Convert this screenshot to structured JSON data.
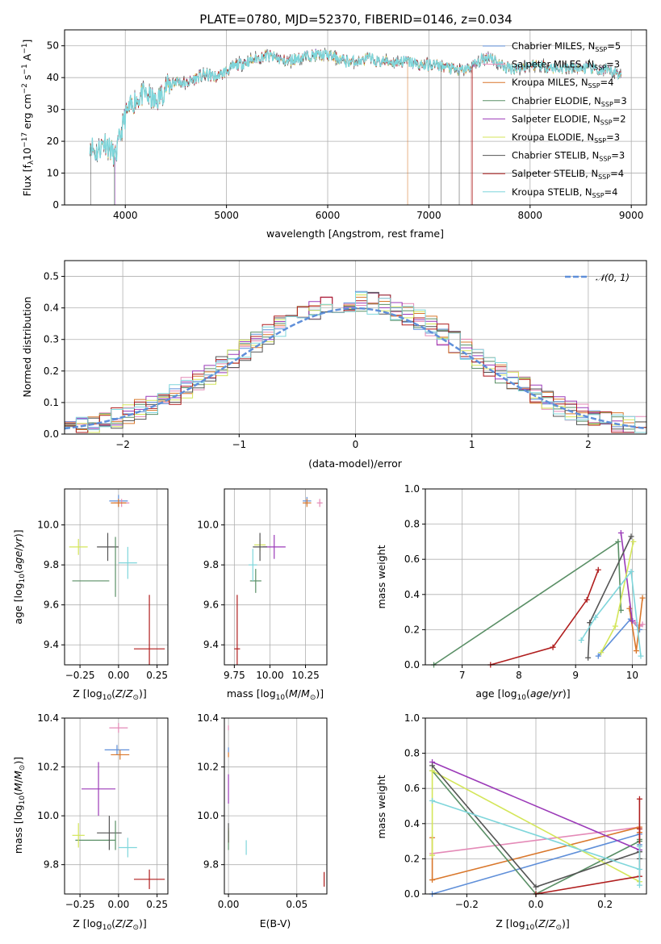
{
  "figure_title": "PLATE=0780, MJD=52370, FIBERID=0146, z=0.034",
  "models": [
    {
      "name": "Chabrier MILES, N$_{SSP}$=5",
      "label": "Chabrier MILES, N",
      "nssp": "=5",
      "color": "#5f8fd9"
    },
    {
      "name": "Salpeter MILES, N$_{SSP}$=3",
      "label": "Salpeter MILES, N",
      "nssp": "=3",
      "color": "#e48ab7"
    },
    {
      "name": "Kroupa MILES, N$_{SSP}$=4",
      "label": "Kroupa MILES, N",
      "nssp": "=4",
      "color": "#d9772b"
    },
    {
      "name": "Chabrier ELODIE, N$_{SSP}$=3",
      "label": "Chabrier ELODIE, N",
      "nssp": "=3",
      "color": "#5a8f66"
    },
    {
      "name": "Salpeter ELODIE, N$_{SSP}$=2",
      "label": "Salpeter ELODIE, N",
      "nssp": "=2",
      "color": "#9b3ab8"
    },
    {
      "name": "Kroupa ELODIE, N$_{SSP}$=3",
      "label": "Kroupa ELODIE, N",
      "nssp": "=3",
      "color": "#d4e65a"
    },
    {
      "name": "Chabrier STELIB, N$_{SSP}$=3",
      "label": "Chabrier STELIB, N",
      "nssp": "=3",
      "color": "#555555"
    },
    {
      "name": "Salpeter STELIB, N$_{SSP}$=4",
      "label": "Salpeter STELIB, N",
      "nssp": "=4",
      "color": "#b01e1e"
    },
    {
      "name": "Kroupa STELIB, N$_{SSP}$=4",
      "label": "Kroupa STELIB, N",
      "nssp": "=4",
      "color": "#7fd6db"
    }
  ],
  "chart_data": [
    {
      "id": "spectrum",
      "type": "line",
      "title": "PLATE=0780, MJD=52370, FIBERID=0146, z=0.034",
      "xlabel": "wavelength [Angstrom, rest frame]",
      "ylabel": "Flux [f_λ 10^-17 erg cm^-2 s^-1 A^-1]",
      "xlim": [
        3400,
        9150
      ],
      "ylim": [
        0,
        55
      ],
      "xticks": [
        4000,
        5000,
        6000,
        7000,
        8000,
        9000
      ],
      "yticks": [
        0,
        10,
        20,
        30,
        40,
        50
      ],
      "legend": "upper-right",
      "envelope": {
        "x": [
          3650,
          3700,
          3800,
          3900,
          4000,
          4100,
          4200,
          4300,
          4400,
          4500,
          4600,
          4700,
          4800,
          4900,
          5000,
          5100,
          5200,
          5300,
          5400,
          5500,
          5600,
          5700,
          5800,
          5900,
          6000,
          6100,
          6200,
          6300,
          6400,
          6500,
          6600,
          6700,
          6800,
          6900,
          7000,
          7100,
          7200,
          7300,
          7400,
          7500,
          7600,
          7700,
          7800,
          7900,
          8000,
          8100,
          8200,
          8300,
          8400,
          8500,
          8600,
          8700,
          8800,
          8900
        ],
        "y": [
          20,
          16,
          20,
          15,
          28,
          33,
          35,
          32,
          37,
          39,
          38,
          40,
          41,
          40,
          42,
          44,
          45,
          46,
          47,
          46,
          45,
          46,
          47,
          47,
          47,
          46,
          45,
          45,
          46,
          45,
          45,
          45,
          45,
          44,
          44,
          44,
          43,
          42,
          43,
          45,
          47,
          44,
          43,
          43,
          44,
          44,
          43,
          43,
          43,
          43,
          43,
          42,
          42,
          41
        ]
      },
      "notes": "Nine overlapping model spectra over the observed flux"
    },
    {
      "id": "residuals",
      "type": "histogram",
      "xlabel": "(data-model)/error",
      "ylabel": "Normed distribution",
      "xlim": [
        -2.5,
        2.5
      ],
      "ylim": [
        0,
        0.55
      ],
      "xticks": [
        -2,
        -1,
        0,
        1,
        2
      ],
      "yticks": [
        0.0,
        0.1,
        0.2,
        0.3,
        0.4,
        0.5
      ],
      "legend": "upper-right",
      "reference_label": "𝒩(0, 1)",
      "reference_color": "#5f8fd9",
      "bin_width": 0.1,
      "bin_start": -2.6
    },
    {
      "id": "age-vs-z",
      "type": "errorbar",
      "xlabel": "Z [log10(Z/Z⊙)]",
      "ylabel": "age [log10(age/yr)]",
      "xlim": [
        -0.35,
        0.32
      ],
      "ylim": [
        9.3,
        10.18
      ],
      "xticks": [
        -0.25,
        0.0,
        0.25
      ],
      "xtick_labels": [
        "−0.25",
        "0.00",
        "0.25"
      ],
      "yticks": [
        9.4,
        9.6,
        9.8,
        10.0
      ],
      "points": [
        {
          "model": 0,
          "x": 0.0,
          "xerr": 0.06,
          "y": 10.12,
          "yerr": 0.03
        },
        {
          "model": 1,
          "x": 0.02,
          "xerr": 0.05,
          "y": 10.11,
          "yerr": 0.02
        },
        {
          "model": 2,
          "x": 0.0,
          "xerr": 0.05,
          "y": 10.11,
          "yerr": 0.02
        },
        {
          "model": 3,
          "x": -0.18,
          "xerr": 0.12,
          "y": 9.72,
          "yerr": 0.0
        },
        {
          "model": 4,
          "x": -0.05,
          "xerr": 0.0,
          "y": 10.12,
          "yerr": 0.0
        },
        {
          "model": 5,
          "x": -0.26,
          "xerr": 0.06,
          "y": 9.89,
          "yerr": 0.04
        },
        {
          "model": 6,
          "x": -0.07,
          "xerr": 0.07,
          "y": 9.89,
          "yerr": 0.07
        },
        {
          "model": 7,
          "x": 0.2,
          "xerr": 0.1,
          "y": 9.38,
          "yerr": 0.27
        },
        {
          "model": 8,
          "x": 0.06,
          "xerr": 0.06,
          "y": 9.81,
          "yerr": 0.08
        },
        {
          "model": 3,
          "x": -0.02,
          "xerr": 0.0,
          "y": 9.79,
          "yerr": 0.15
        }
      ]
    },
    {
      "id": "age-vs-mass",
      "type": "errorbar",
      "xlabel": "mass [log10(M/M⊙)]",
      "ylabel": "",
      "xlim": [
        9.68,
        10.4
      ],
      "ylim": [
        9.3,
        10.18
      ],
      "xticks": [
        9.75,
        10.0,
        10.25
      ],
      "xtick_labels": [
        "9.75",
        "10.00",
        "10.25"
      ],
      "yticks": [
        9.4,
        9.6,
        9.8,
        10.0
      ],
      "points": [
        {
          "model": 0,
          "x": 10.26,
          "xerr": 0.03,
          "y": 10.12,
          "yerr": 0.02
        },
        {
          "model": 1,
          "x": 10.35,
          "xerr": 0.02,
          "y": 10.11,
          "yerr": 0.02
        },
        {
          "model": 2,
          "x": 10.26,
          "xerr": 0.03,
          "y": 10.11,
          "yerr": 0.02
        },
        {
          "model": 3,
          "x": 9.9,
          "xerr": 0.04,
          "y": 9.72,
          "yerr": 0.06
        },
        {
          "model": 4,
          "x": 10.03,
          "xerr": 0.08,
          "y": 9.89,
          "yerr": 0.06
        },
        {
          "model": 5,
          "x": 9.93,
          "xerr": 0.04,
          "y": 9.9,
          "yerr": 0.03
        },
        {
          "model": 6,
          "x": 9.93,
          "xerr": 0.05,
          "y": 9.89,
          "yerr": 0.07
        },
        {
          "model": 7,
          "x": 9.77,
          "xerr": 0.02,
          "y": 9.38,
          "yerr": 0.27
        },
        {
          "model": 8,
          "x": 9.88,
          "xerr": 0.03,
          "y": 9.8,
          "yerr": 0.08
        }
      ]
    },
    {
      "id": "weight-vs-age",
      "type": "line",
      "xlabel": "age [log10(age/yr)]",
      "ylabel": "mass weight",
      "xlim": [
        6.35,
        10.25
      ],
      "ylim": [
        0.0,
        1.0
      ],
      "xticks": [
        7,
        8,
        9,
        10
      ],
      "yticks": [
        0.0,
        0.2,
        0.4,
        0.6,
        0.8,
        1.0
      ],
      "series": [
        {
          "model": 0,
          "x": [
            9.4,
            9.97,
            10.13
          ],
          "y": [
            0.05,
            0.26,
            0.2
          ]
        },
        {
          "model": 1,
          "x": [
            10.05,
            10.12,
            10.18
          ],
          "y": [
            0.24,
            0.22,
            0.23
          ]
        },
        {
          "model": 2,
          "x": [
            9.95,
            10.07,
            10.18
          ],
          "y": [
            0.32,
            0.08,
            0.38
          ]
        },
        {
          "model": 3,
          "x": [
            6.5,
            9.75,
            9.8
          ],
          "y": [
            0.0,
            0.7,
            0.31
          ]
        },
        {
          "model": 4,
          "x": [
            9.8,
            10.0
          ],
          "y": [
            0.75,
            0.25
          ]
        },
        {
          "model": 5,
          "x": [
            9.45,
            9.7,
            10.02
          ],
          "y": [
            0.07,
            0.22,
            0.7
          ]
        },
        {
          "model": 6,
          "x": [
            9.22,
            9.25,
            9.98
          ],
          "y": [
            0.04,
            0.24,
            0.73
          ]
        },
        {
          "model": 7,
          "x": [
            7.5,
            8.6,
            9.2,
            9.4
          ],
          "y": [
            0.0,
            0.1,
            0.37,
            0.54
          ]
        },
        {
          "model": 8,
          "x": [
            9.1,
            9.35,
            9.98,
            10.15
          ],
          "y": [
            0.14,
            0.27,
            0.53,
            0.05
          ]
        }
      ]
    },
    {
      "id": "mass-vs-z",
      "type": "errorbar",
      "xlabel": "Z [log10(Z/Z⊙)]",
      "ylabel": "mass [log10(M/M⊙)]",
      "xlim": [
        -0.35,
        0.32
      ],
      "ylim": [
        9.68,
        10.4
      ],
      "xticks": [
        -0.25,
        0.0,
        0.25
      ],
      "xtick_labels": [
        "−0.25",
        "0.00",
        "0.25"
      ],
      "yticks": [
        9.8,
        10.0,
        10.2,
        10.4
      ],
      "points": [
        {
          "model": 0,
          "x": -0.01,
          "xerr": 0.08,
          "y": 10.27,
          "yerr": 0.02
        },
        {
          "model": 1,
          "x": 0.0,
          "xerr": 0.06,
          "y": 10.36,
          "yerr": 0.02
        },
        {
          "model": 2,
          "x": 0.01,
          "xerr": 0.06,
          "y": 10.25,
          "yerr": 0.02
        },
        {
          "model": 3,
          "x": -0.15,
          "xerr": 0.13,
          "y": 9.9,
          "yerr": 0.0
        },
        {
          "model": 4,
          "x": -0.13,
          "xerr": 0.11,
          "y": 10.11,
          "yerr": 0.11
        },
        {
          "model": 5,
          "x": -0.26,
          "xerr": 0.04,
          "y": 9.92,
          "yerr": 0.05
        },
        {
          "model": 6,
          "x": -0.06,
          "xerr": 0.08,
          "y": 9.93,
          "yerr": 0.07
        },
        {
          "model": 7,
          "x": 0.2,
          "xerr": 0.1,
          "y": 9.74,
          "yerr": 0.04
        },
        {
          "model": 8,
          "x": 0.06,
          "xerr": 0.06,
          "y": 9.87,
          "yerr": 0.04
        },
        {
          "model": 3,
          "x": -0.02,
          "xerr": 0.0,
          "y": 9.92,
          "yerr": 0.06
        }
      ]
    },
    {
      "id": "mass-vs-ebv",
      "type": "errorbar",
      "xlabel": "E(B-V)",
      "ylabel": "",
      "xlim": [
        -0.003,
        0.072
      ],
      "ylim": [
        9.68,
        10.4
      ],
      "xticks": [
        0.0,
        0.05
      ],
      "xtick_labels": [
        "0.00",
        "0.05"
      ],
      "yticks": [
        9.8,
        10.0,
        10.2,
        10.4
      ],
      "points": [
        {
          "model": 0,
          "x": 0.0,
          "xerr": 0.0,
          "y": 10.27,
          "yerr": 0.01
        },
        {
          "model": 1,
          "x": 0.0,
          "xerr": 0.0,
          "y": 10.36,
          "yerr": 0.01
        },
        {
          "model": 2,
          "x": 0.0,
          "xerr": 0.0,
          "y": 10.25,
          "yerr": 0.01
        },
        {
          "model": 3,
          "x": 0.0,
          "xerr": 0.0,
          "y": 9.9,
          "yerr": 0.04
        },
        {
          "model": 4,
          "x": 0.0,
          "xerr": 0.0,
          "y": 10.11,
          "yerr": 0.06
        },
        {
          "model": 5,
          "x": 0.0,
          "xerr": 0.0,
          "y": 9.92,
          "yerr": 0.03
        },
        {
          "model": 6,
          "x": 0.0,
          "xerr": 0.0,
          "y": 9.93,
          "yerr": 0.04
        },
        {
          "model": 7,
          "x": 0.07,
          "xerr": 0.0,
          "y": 9.74,
          "yerr": 0.03
        },
        {
          "model": 8,
          "x": 0.013,
          "xerr": 0.0,
          "y": 9.87,
          "yerr": 0.03
        }
      ]
    },
    {
      "id": "weight-vs-z",
      "type": "line",
      "xlabel": "Z [log10(Z/Z⊙)]",
      "ylabel": "mass weight",
      "xlim": [
        -0.32,
        0.32
      ],
      "ylim": [
        0.0,
        1.0
      ],
      "xticks": [
        -0.2,
        0.0,
        0.2
      ],
      "xtick_labels": [
        "−0.2",
        "0.0",
        "0.2"
      ],
      "yticks": [
        0.0,
        0.2,
        0.4,
        0.6,
        0.8,
        1.0
      ],
      "series": [
        {
          "model": 0,
          "x": [
            -0.3,
            0.3,
            0.3,
            0.3
          ],
          "y": [
            0.0,
            0.34,
            0.28,
            0.25
          ]
        },
        {
          "model": 1,
          "x": [
            -0.3,
            0.3,
            0.3,
            0.3
          ],
          "y": [
            0.23,
            0.38,
            0.35,
            0.3
          ]
        },
        {
          "model": 2,
          "x": [
            -0.3,
            -0.3,
            0.3,
            0.3
          ],
          "y": [
            0.32,
            0.08,
            0.38,
            0.35
          ]
        },
        {
          "model": 3,
          "x": [
            -0.3,
            0.0,
            0.3,
            0.3
          ],
          "y": [
            0.7,
            0.0,
            0.3,
            0.31
          ]
        },
        {
          "model": 4,
          "x": [
            -0.3,
            0.3
          ],
          "y": [
            0.75,
            0.25
          ]
        },
        {
          "model": 5,
          "x": [
            -0.3,
            -0.3,
            0.3
          ],
          "y": [
            0.22,
            0.7,
            0.07
          ]
        },
        {
          "model": 6,
          "x": [
            -0.3,
            0.0,
            0.3,
            0.3
          ],
          "y": [
            0.73,
            0.04,
            0.24,
            0.2
          ]
        },
        {
          "model": 7,
          "x": [
            0.0,
            0.3,
            0.3,
            0.3
          ],
          "y": [
            0.0,
            0.1,
            0.37,
            0.54
          ]
        },
        {
          "model": 8,
          "x": [
            -0.3,
            0.3,
            0.3,
            0.3
          ],
          "y": [
            0.53,
            0.14,
            0.27,
            0.05
          ]
        }
      ]
    }
  ]
}
